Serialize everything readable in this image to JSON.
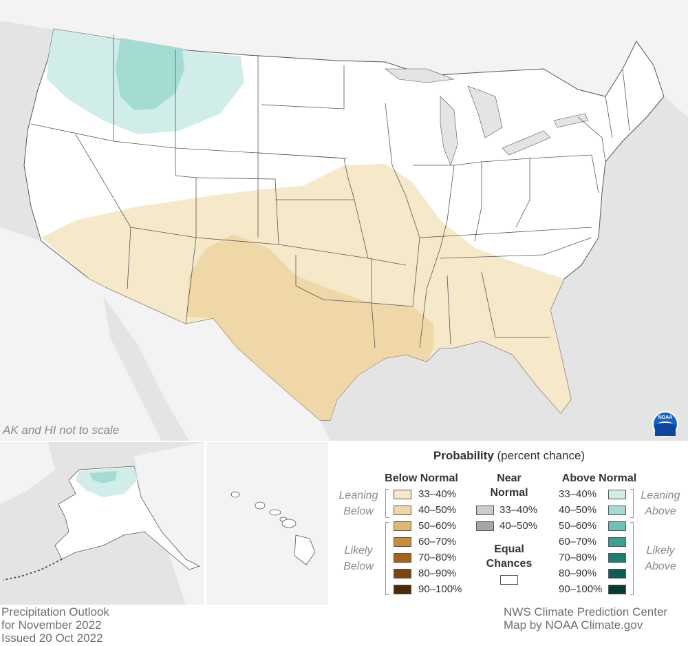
{
  "map": {
    "note": "AK and HI not to scale",
    "colors": {
      "ocean": "#e4e4e4",
      "land_other": "#f3f3f3",
      "ec_land": "#ffffff",
      "state_border": "#555555"
    }
  },
  "legend": {
    "title_bold": "Probability",
    "title_rest": " (percent chance)",
    "below": {
      "header": "Below Normal",
      "leaning_label": [
        "Leaning",
        "Below"
      ],
      "likely_label": [
        "Likely",
        "Below"
      ],
      "items": [
        {
          "label": "33–40%",
          "color": "#f6e8c6"
        },
        {
          "label": "40–50%",
          "color": "#eed6a6"
        },
        {
          "label": "50–60%",
          "color": "#dfb772"
        },
        {
          "label": "60–70%",
          "color": "#c98c3a"
        },
        {
          "label": "70–80%",
          "color": "#a5631a"
        },
        {
          "label": "80–90%",
          "color": "#7f4510"
        },
        {
          "label": "90–100%",
          "color": "#4f2a07"
        }
      ]
    },
    "near": {
      "header": [
        "Near",
        "Normal"
      ],
      "items": [
        {
          "label": "33–40%",
          "color": "#cccccc"
        },
        {
          "label": "40–50%",
          "color": "#a6a6a6"
        }
      ]
    },
    "equal": {
      "header": [
        "Equal",
        "Chances"
      ],
      "color": "#ffffff"
    },
    "above": {
      "header": "Above Normal",
      "leaning_label": [
        "Leaning",
        "Above"
      ],
      "likely_label": [
        "Likely",
        "Above"
      ],
      "items": [
        {
          "label": "33–40%",
          "color": "#d1ede9"
        },
        {
          "label": "40–50%",
          "color": "#a4dcd3"
        },
        {
          "label": "50–60%",
          "color": "#6cc3b5"
        },
        {
          "label": "60–70%",
          "color": "#3aa193"
        },
        {
          "label": "70–80%",
          "color": "#1c7f73"
        },
        {
          "label": "80–90%",
          "color": "#0d5d53"
        },
        {
          "label": "90–100%",
          "color": "#063b34"
        }
      ]
    }
  },
  "footer": {
    "left": [
      "Precipitation Outlook",
      "for November 2022",
      "Issued 20 Oct 2022"
    ],
    "right": [
      "NWS Climate Prediction Center",
      "Map by NOAA Climate.gov"
    ]
  },
  "logo": {
    "text": "NOAA",
    "color": "#1565c0"
  }
}
